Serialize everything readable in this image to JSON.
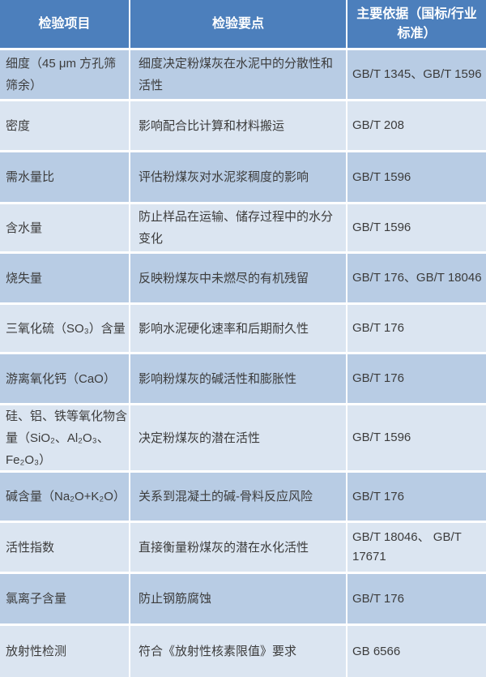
{
  "table": {
    "header": {
      "item": "检验项目",
      "point": "检验要点",
      "basis": "主要依据（国标/行业标准）"
    },
    "rows": [
      {
        "item": "细度（45 μm 方孔筛筛余）",
        "point": "细度决定粉煤灰在水泥中的分散性和活性",
        "basis": "GB/T 1345、GB/T 1596"
      },
      {
        "item": "密度",
        "point": "影响配合比计算和材料搬运",
        "basis": "GB/T 208"
      },
      {
        "item": "需水量比",
        "point": "评估粉煤灰对水泥浆稠度的影响",
        "basis": "GB/T 1596"
      },
      {
        "item": "含水量",
        "point": "防止样品在运输、储存过程中的水分变化",
        "basis": "GB/T 1596"
      },
      {
        "item": "烧失量",
        "point": "反映粉煤灰中未燃尽的有机残留",
        "basis": "GB/T 176、GB/T 18046"
      },
      {
        "item": "三氧化硫（SO₃）含量",
        "point": "影响水泥硬化速率和后期耐久性",
        "basis": "GB/T 176"
      },
      {
        "item": "游离氧化钙（CaO）",
        "point": "影响粉煤灰的碱活性和膨胀性",
        "basis": "GB/T 176"
      },
      {
        "item": "硅、铝、铁等氧化物含量（SiO₂、Al₂O₃、Fe₂O₃）",
        "point": "决定粉煤灰的潜在活性",
        "basis": "GB/T 1596"
      },
      {
        "item": "碱含量（Na₂O+K₂O）",
        "point": "关系到混凝土的碱-骨料反应风险",
        "basis": "GB/T 176"
      },
      {
        "item": "活性指数",
        "point": "直接衡量粉煤灰的潜在水化活性",
        "basis": "GB/T 18046、 GB/T 17671"
      },
      {
        "item": "氯离子含量",
        "point": "防止钢筋腐蚀",
        "basis": "GB/T 176"
      },
      {
        "item": "放射性检测",
        "point": "符合《放射性核素限值》要求",
        "basis": "GB 6566"
      }
    ],
    "colors": {
      "header_bg": "#4c7fbc",
      "row_band_dark": "#b8cce4",
      "row_band_light": "#dbe5f1",
      "header_text": "#ffffff",
      "body_text": "#3c3c3c",
      "divider": "#ffffff"
    }
  }
}
